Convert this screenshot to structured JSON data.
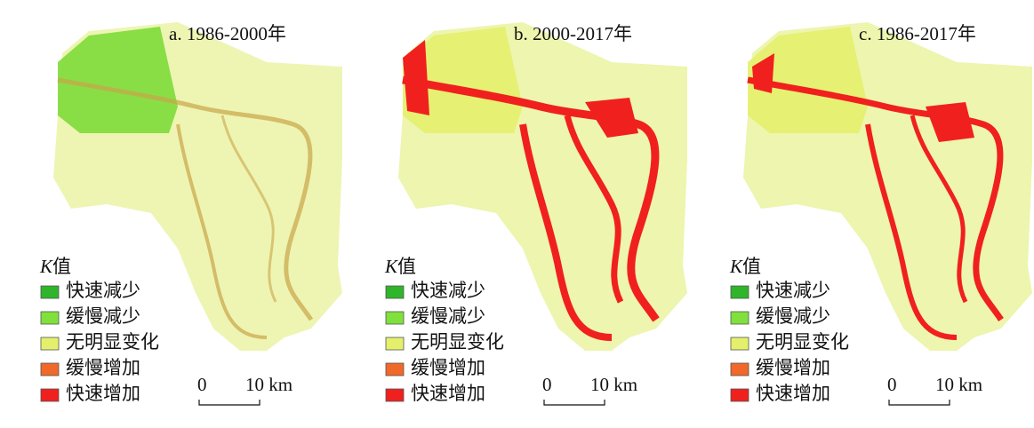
{
  "panels": [
    {
      "title": "a. 1986-2000年"
    },
    {
      "title": "b. 2000-2017年"
    },
    {
      "title": "c. 1986-2017年"
    }
  ],
  "legend": {
    "symbol": "K",
    "title": "值",
    "items": [
      {
        "label": "快速减少",
        "color": "#2fb52a"
      },
      {
        "label": "缓慢减少",
        "color": "#80e03c"
      },
      {
        "label": "无明显变化",
        "color": "#e4f06c"
      },
      {
        "label": "缓慢增加",
        "color": "#f0682a"
      },
      {
        "label": "快速增加",
        "color": "#f0201e"
      }
    ]
  },
  "scale_bar": {
    "start": "0",
    "end": "10 km"
  }
}
